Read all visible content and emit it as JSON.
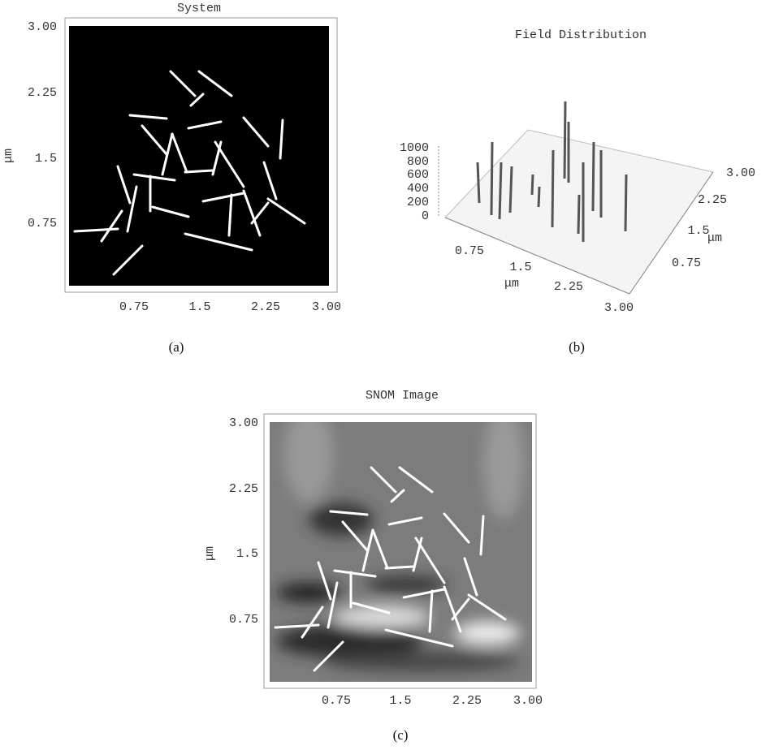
{
  "panels": [
    {
      "title": "System",
      "xticks": [
        "0.75",
        "1.5",
        "2.25",
        "3.00"
      ],
      "yticks": [
        "3.00",
        "2.25",
        "1.5",
        "0.75"
      ],
      "ylabel": "μm",
      "caption": "(a)"
    },
    {
      "title": "Field Distribution",
      "zticks": [
        "1000",
        "800",
        "600",
        "400",
        "200",
        "0"
      ],
      "xticks": [
        "0.75",
        "1.5",
        "2.25",
        "3.00"
      ],
      "xlabel": "μm",
      "yticks": [
        "3.00",
        "2.25",
        "1.5",
        "0.75"
      ],
      "ylabel": "μm",
      "caption": "(b)"
    },
    {
      "title": "SNOM Image",
      "xticks": [
        "0.75",
        "1.5",
        "2.25",
        "3.00"
      ],
      "yticks": [
        "3.00",
        "2.25",
        "1.5",
        "0.75"
      ],
      "ylabel": "μm",
      "caption": "(c)"
    }
  ]
}
